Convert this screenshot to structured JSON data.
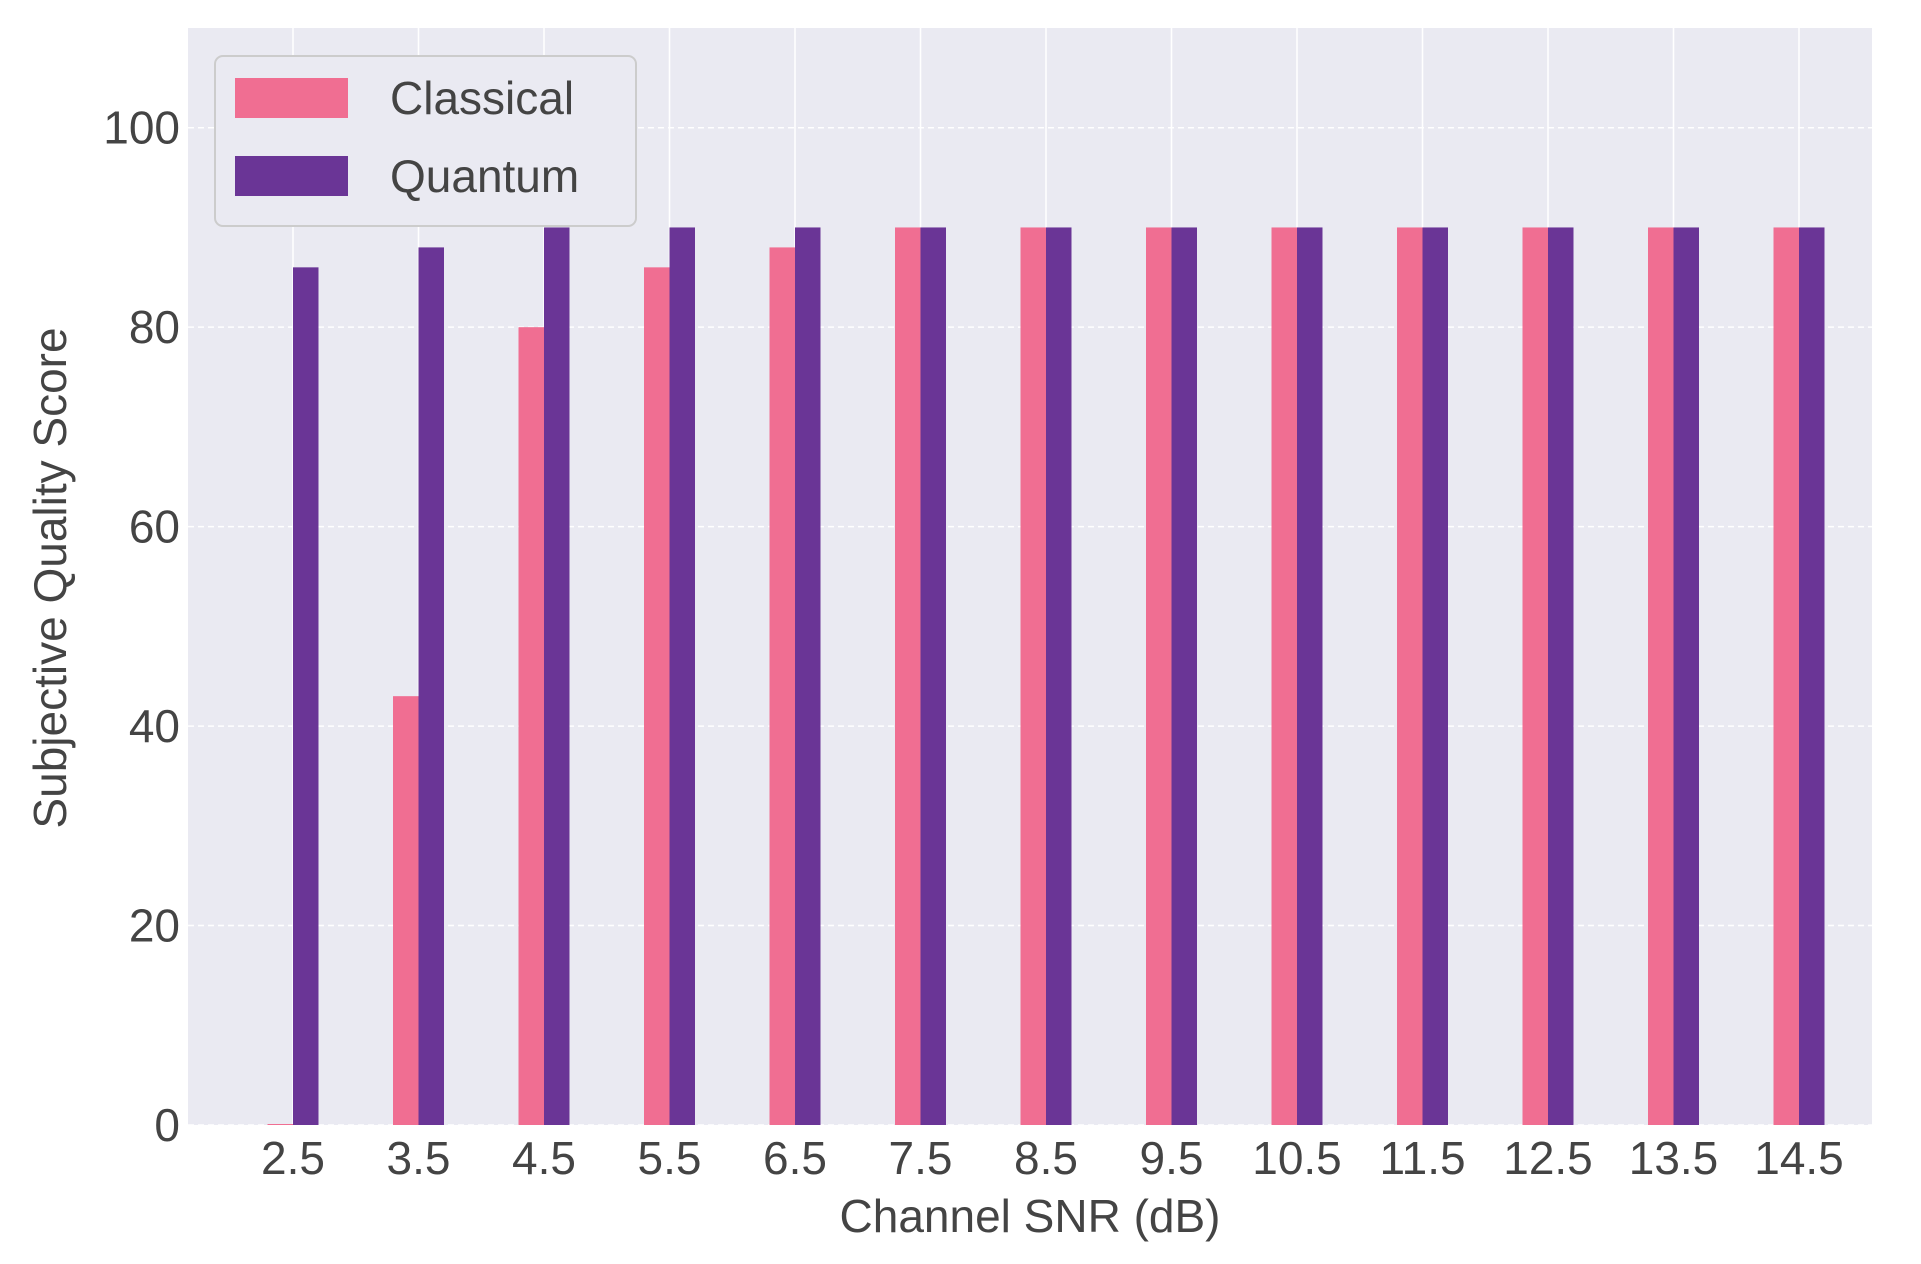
{
  "chart_data": {
    "type": "bar",
    "title": "",
    "xlabel": "Channel SNR (dB)",
    "ylabel": "Subjective Quality Score",
    "categories": [
      "2.5",
      "3.5",
      "4.5",
      "5.5",
      "6.5",
      "7.5",
      "8.5",
      "9.5",
      "10.5",
      "11.5",
      "12.5",
      "13.5",
      "14.5"
    ],
    "series": [
      {
        "name": "Classical",
        "color": "#f06e92",
        "values": [
          0,
          43,
          80,
          86,
          88,
          90,
          90,
          90,
          90,
          90,
          90,
          90,
          90
        ]
      },
      {
        "name": "Quantum",
        "color": "#6a3596",
        "values": [
          86,
          88,
          90,
          90,
          90,
          90,
          90,
          90,
          90,
          90,
          90,
          90,
          90
        ]
      }
    ],
    "ylim": [
      0,
      110
    ],
    "yticks": [
      0,
      20,
      40,
      60,
      80,
      100
    ],
    "grid": true,
    "legend_position": "top-left",
    "background": "#eaeaf2"
  }
}
